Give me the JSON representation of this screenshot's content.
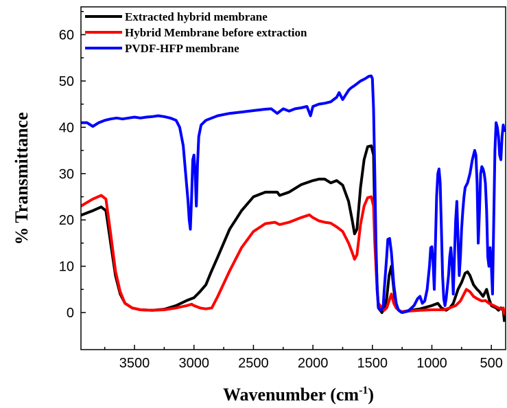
{
  "chart_data": {
    "type": "line",
    "xlabel": "Wavenumber (cm",
    "xlabel_sup": "-1",
    "xlabel_close": ")",
    "ylabel": "% Transmittance",
    "xlim": [
      3950,
      380
    ],
    "ylim": [
      -8,
      66
    ],
    "x_ticks": [
      3500,
      3000,
      2500,
      2000,
      1500,
      1000,
      500
    ],
    "y_ticks": [
      0,
      10,
      20,
      30,
      40,
      50,
      60
    ],
    "legend_position": "top-left",
    "grid": false,
    "series": [
      {
        "name": "Extracted hybrid membrane",
        "color": "#000000",
        "points": [
          [
            3950,
            21
          ],
          [
            3850,
            22
          ],
          [
            3780,
            22.8
          ],
          [
            3740,
            22
          ],
          [
            3700,
            15
          ],
          [
            3660,
            8
          ],
          [
            3620,
            4
          ],
          [
            3580,
            2
          ],
          [
            3520,
            1
          ],
          [
            3450,
            0.6
          ],
          [
            3350,
            0.5
          ],
          [
            3250,
            0.7
          ],
          [
            3150,
            1.5
          ],
          [
            3060,
            2.6
          ],
          [
            3020,
            3
          ],
          [
            3000,
            3.2
          ],
          [
            2950,
            4.5
          ],
          [
            2900,
            6
          ],
          [
            2860,
            8.5
          ],
          [
            2800,
            12
          ],
          [
            2700,
            18
          ],
          [
            2600,
            22
          ],
          [
            2500,
            25
          ],
          [
            2400,
            26
          ],
          [
            2300,
            26
          ],
          [
            2280,
            25.3
          ],
          [
            2200,
            26
          ],
          [
            2100,
            27.6
          ],
          [
            2000,
            28.5
          ],
          [
            1950,
            28.8
          ],
          [
            1900,
            28.8
          ],
          [
            1850,
            28
          ],
          [
            1800,
            28.5
          ],
          [
            1750,
            27.5
          ],
          [
            1700,
            24
          ],
          [
            1670,
            20
          ],
          [
            1650,
            17
          ],
          [
            1630,
            18
          ],
          [
            1600,
            27
          ],
          [
            1570,
            33
          ],
          [
            1540,
            35.8
          ],
          [
            1510,
            36
          ],
          [
            1490,
            34
          ],
          [
            1480,
            20
          ],
          [
            1460,
            6
          ],
          [
            1450,
            1
          ],
          [
            1420,
            0
          ],
          [
            1400,
            1
          ],
          [
            1380,
            3
          ],
          [
            1360,
            8
          ],
          [
            1340,
            10
          ],
          [
            1320,
            5
          ],
          [
            1300,
            1
          ],
          [
            1260,
            0.1
          ],
          [
            1200,
            0.4
          ],
          [
            1100,
            0.8
          ],
          [
            1000,
            1.5
          ],
          [
            950,
            2
          ],
          [
            920,
            1
          ],
          [
            880,
            0.5
          ],
          [
            850,
            1
          ],
          [
            820,
            2
          ],
          [
            780,
            5
          ],
          [
            750,
            6.5
          ],
          [
            720,
            8.5
          ],
          [
            700,
            8.8
          ],
          [
            680,
            8
          ],
          [
            650,
            6
          ],
          [
            620,
            5
          ],
          [
            600,
            4.5
          ],
          [
            570,
            3.5
          ],
          [
            540,
            5
          ],
          [
            520,
            3
          ],
          [
            500,
            1.5
          ],
          [
            460,
            1
          ],
          [
            440,
            0.5
          ],
          [
            420,
            1
          ],
          [
            400,
            0.5
          ],
          [
            390,
            -2
          ]
        ]
      },
      {
        "name": "Hybrid Membrane before extraction",
        "color": "#ff0000",
        "points": [
          [
            3950,
            23
          ],
          [
            3850,
            24.5
          ],
          [
            3780,
            25.3
          ],
          [
            3740,
            24.5
          ],
          [
            3700,
            17
          ],
          [
            3660,
            9
          ],
          [
            3620,
            4.5
          ],
          [
            3580,
            2
          ],
          [
            3520,
            1
          ],
          [
            3450,
            0.6
          ],
          [
            3350,
            0.5
          ],
          [
            3250,
            0.6
          ],
          [
            3150,
            1
          ],
          [
            3060,
            1.5
          ],
          [
            3020,
            1.8
          ],
          [
            3000,
            1.5
          ],
          [
            2950,
            1
          ],
          [
            2900,
            0.8
          ],
          [
            2850,
            1
          ],
          [
            2800,
            3.5
          ],
          [
            2700,
            9
          ],
          [
            2600,
            14
          ],
          [
            2500,
            17.5
          ],
          [
            2400,
            19.2
          ],
          [
            2320,
            19.5
          ],
          [
            2280,
            19
          ],
          [
            2200,
            19.5
          ],
          [
            2100,
            20.5
          ],
          [
            2030,
            21.1
          ],
          [
            2000,
            20.5
          ],
          [
            1950,
            19.8
          ],
          [
            1900,
            19.5
          ],
          [
            1850,
            19.3
          ],
          [
            1800,
            18.5
          ],
          [
            1750,
            17.5
          ],
          [
            1700,
            15
          ],
          [
            1670,
            13
          ],
          [
            1650,
            11.5
          ],
          [
            1630,
            12.5
          ],
          [
            1600,
            19
          ],
          [
            1570,
            23
          ],
          [
            1540,
            24.8
          ],
          [
            1510,
            25
          ],
          [
            1490,
            23
          ],
          [
            1480,
            15
          ],
          [
            1460,
            5
          ],
          [
            1450,
            2
          ],
          [
            1420,
            1
          ],
          [
            1400,
            0.5
          ],
          [
            1380,
            1
          ],
          [
            1360,
            2.5
          ],
          [
            1340,
            4
          ],
          [
            1320,
            2
          ],
          [
            1300,
            1
          ],
          [
            1260,
            0.2
          ],
          [
            1200,
            0.3
          ],
          [
            1100,
            0.5
          ],
          [
            1000,
            0.6
          ],
          [
            900,
            0.6
          ],
          [
            850,
            1
          ],
          [
            800,
            1.5
          ],
          [
            760,
            2.5
          ],
          [
            730,
            4
          ],
          [
            710,
            5
          ],
          [
            680,
            4.5
          ],
          [
            650,
            3.5
          ],
          [
            620,
            3
          ],
          [
            580,
            2.5
          ],
          [
            550,
            2.6
          ],
          [
            520,
            2
          ],
          [
            480,
            1.5
          ],
          [
            440,
            1
          ],
          [
            420,
            0.8
          ],
          [
            400,
            1
          ],
          [
            390,
            -0.5
          ]
        ]
      },
      {
        "name": "PVDF-HFP membrane",
        "color": "#0000ff",
        "points": [
          [
            3950,
            41
          ],
          [
            3900,
            41
          ],
          [
            3850,
            40.2
          ],
          [
            3800,
            41
          ],
          [
            3750,
            41.5
          ],
          [
            3700,
            41.8
          ],
          [
            3650,
            42
          ],
          [
            3600,
            41.8
          ],
          [
            3550,
            42
          ],
          [
            3500,
            42.2
          ],
          [
            3450,
            42
          ],
          [
            3400,
            42.2
          ],
          [
            3350,
            42.3
          ],
          [
            3300,
            42.5
          ],
          [
            3250,
            42.3
          ],
          [
            3200,
            42
          ],
          [
            3150,
            41.5
          ],
          [
            3120,
            40
          ],
          [
            3090,
            36
          ],
          [
            3070,
            30
          ],
          [
            3050,
            24
          ],
          [
            3040,
            20
          ],
          [
            3030,
            18
          ],
          [
            3020,
            25
          ],
          [
            3010,
            33
          ],
          [
            3000,
            34
          ],
          [
            2990,
            30
          ],
          [
            2980,
            23
          ],
          [
            2970,
            32
          ],
          [
            2960,
            38
          ],
          [
            2940,
            40.5
          ],
          [
            2900,
            41.5
          ],
          [
            2850,
            42
          ],
          [
            2800,
            42.5
          ],
          [
            2700,
            43
          ],
          [
            2600,
            43.3
          ],
          [
            2500,
            43.6
          ],
          [
            2400,
            43.9
          ],
          [
            2350,
            44
          ],
          [
            2300,
            43
          ],
          [
            2250,
            44
          ],
          [
            2200,
            43.5
          ],
          [
            2150,
            44
          ],
          [
            2100,
            44.2
          ],
          [
            2050,
            44.5
          ],
          [
            2020,
            42.5
          ],
          [
            2000,
            44.5
          ],
          [
            1950,
            45
          ],
          [
            1900,
            45.2
          ],
          [
            1850,
            45.5
          ],
          [
            1800,
            46.5
          ],
          [
            1780,
            47.5
          ],
          [
            1750,
            46
          ],
          [
            1700,
            48
          ],
          [
            1680,
            48.5
          ],
          [
            1650,
            49
          ],
          [
            1600,
            50
          ],
          [
            1560,
            50.5
          ],
          [
            1530,
            51
          ],
          [
            1510,
            51.1
          ],
          [
            1500,
            50.5
          ],
          [
            1490,
            44
          ],
          [
            1480,
            30
          ],
          [
            1470,
            15
          ],
          [
            1460,
            5
          ],
          [
            1450,
            1
          ],
          [
            1430,
            0.5
          ],
          [
            1410,
            1
          ],
          [
            1400,
            5
          ],
          [
            1380,
            12
          ],
          [
            1370,
            15.8
          ],
          [
            1355,
            16
          ],
          [
            1340,
            13
          ],
          [
            1320,
            6
          ],
          [
            1300,
            2
          ],
          [
            1280,
            0.5
          ],
          [
            1250,
            0
          ],
          [
            1200,
            0.3
          ],
          [
            1150,
            1.5
          ],
          [
            1120,
            3
          ],
          [
            1100,
            3.5
          ],
          [
            1080,
            2
          ],
          [
            1060,
            2.5
          ],
          [
            1040,
            5
          ],
          [
            1020,
            10
          ],
          [
            1010,
            14
          ],
          [
            1000,
            14.2
          ],
          [
            990,
            11
          ],
          [
            980,
            5
          ],
          [
            970,
            15
          ],
          [
            960,
            25
          ],
          [
            950,
            30
          ],
          [
            940,
            31
          ],
          [
            930,
            28
          ],
          [
            920,
            18
          ],
          [
            910,
            8
          ],
          [
            900,
            3
          ],
          [
            890,
            1.5
          ],
          [
            880,
            3
          ],
          [
            860,
            8
          ],
          [
            850,
            12
          ],
          [
            840,
            14
          ],
          [
            830,
            10
          ],
          [
            820,
            4
          ],
          [
            810,
            12
          ],
          [
            800,
            20
          ],
          [
            790,
            24
          ],
          [
            780,
            16
          ],
          [
            770,
            8
          ],
          [
            760,
            12
          ],
          [
            750,
            18
          ],
          [
            740,
            22
          ],
          [
            730,
            25
          ],
          [
            720,
            27
          ],
          [
            700,
            28
          ],
          [
            680,
            30
          ],
          [
            660,
            33
          ],
          [
            640,
            35
          ],
          [
            630,
            34
          ],
          [
            620,
            28
          ],
          [
            610,
            15
          ],
          [
            600,
            22
          ],
          [
            590,
            30
          ],
          [
            580,
            31.5
          ],
          [
            570,
            31
          ],
          [
            560,
            30
          ],
          [
            550,
            28
          ],
          [
            540,
            22
          ],
          [
            530,
            12
          ],
          [
            520,
            10
          ],
          [
            510,
            14
          ],
          [
            500,
            10
          ],
          [
            490,
            4
          ],
          [
            480,
            20
          ],
          [
            470,
            35
          ],
          [
            460,
            41
          ],
          [
            450,
            40
          ],
          [
            440,
            38
          ],
          [
            430,
            34
          ],
          [
            420,
            33
          ],
          [
            410,
            38
          ],
          [
            400,
            40.5
          ],
          [
            390,
            39
          ]
        ]
      }
    ]
  }
}
